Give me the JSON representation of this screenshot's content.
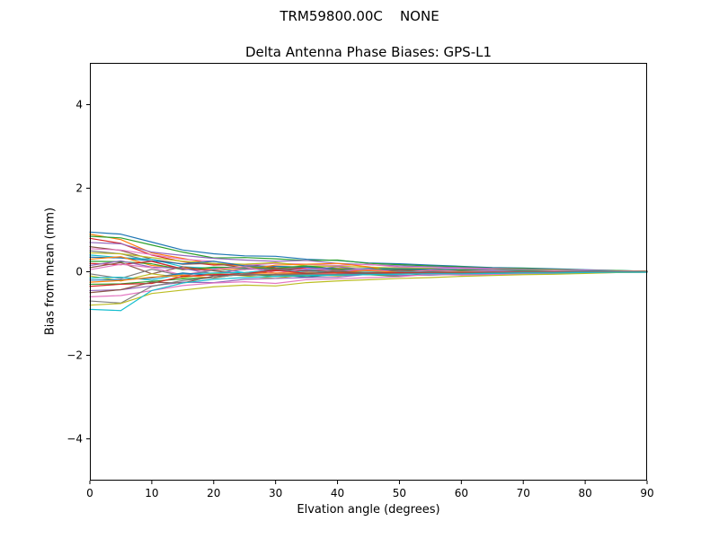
{
  "figure": {
    "title": "TRM59800.00C    NONE",
    "axes_title": "Delta Antenna Phase Biases: GPS-L1",
    "xlabel": "Elvation angle (degrees)",
    "ylabel": "Bias from mean (mm)",
    "background_color": "#ffffff",
    "axes_color": "#000000"
  },
  "chart_data": {
    "type": "line",
    "suptitle": "TRM59800.00C    NONE",
    "title": "Delta Antenna Phase Biases: GPS-L1",
    "xlabel": "Elvation angle (degrees)",
    "ylabel": "Bias from mean (mm)",
    "xlim": [
      0,
      90
    ],
    "ylim": [
      -5,
      5
    ],
    "xticks": [
      0,
      10,
      20,
      30,
      40,
      50,
      60,
      70,
      80,
      90
    ],
    "xtick_labels": [
      "0",
      "10",
      "20",
      "30",
      "40",
      "50",
      "60",
      "70",
      "80",
      "90"
    ],
    "yticks": [
      -4,
      -2,
      0,
      2,
      4
    ],
    "ytick_labels": [
      "−4",
      "−2",
      "0",
      "2",
      "4"
    ],
    "grid": false,
    "legend": null,
    "x": [
      0,
      5,
      10,
      15,
      20,
      25,
      30,
      35,
      40,
      45,
      50,
      55,
      60,
      65,
      70,
      75,
      80,
      85,
      90
    ],
    "series": [
      {
        "color": "#1f77b4",
        "values": [
          0.95,
          0.9,
          0.71,
          0.52,
          0.43,
          0.38,
          0.37,
          0.3,
          0.27,
          0.21,
          0.19,
          0.16,
          0.13,
          0.1,
          0.09,
          0.07,
          0.05,
          0.03,
          0.01
        ]
      },
      {
        "color": "#ff7f0e",
        "values": [
          0.9,
          0.77,
          0.45,
          0.32,
          0.18,
          0.14,
          0.07,
          0.09,
          0.08,
          0.07,
          0.06,
          0.05,
          0.05,
          0.04,
          0.03,
          0.03,
          0.02,
          0.01,
          0.01
        ]
      },
      {
        "color": "#2ca02c",
        "values": [
          0.85,
          0.81,
          0.64,
          0.47,
          0.33,
          0.34,
          0.31,
          0.27,
          0.28,
          0.2,
          0.17,
          0.14,
          0.12,
          0.09,
          0.08,
          0.06,
          0.04,
          0.03,
          0.01
        ]
      },
      {
        "color": "#d62728",
        "values": [
          0.8,
          0.68,
          0.4,
          0.24,
          0.16,
          0.18,
          0.1,
          0.08,
          0.02,
          0.06,
          0.06,
          0.05,
          0.04,
          0.03,
          0.02,
          0.02,
          0.02,
          0.01,
          0.01
        ]
      },
      {
        "color": "#9467bd",
        "values": [
          0.7,
          0.67,
          0.47,
          0.39,
          0.32,
          0.28,
          0.25,
          0.27,
          0.2,
          0.17,
          0.14,
          0.12,
          0.1,
          0.08,
          0.06,
          0.05,
          0.04,
          0.02,
          0.01
        ]
      },
      {
        "color": "#8c564b",
        "values": [
          0.6,
          0.51,
          0.3,
          0.18,
          0.2,
          0.09,
          0.07,
          0.06,
          0.05,
          0.05,
          0.0,
          0.04,
          0.03,
          0.02,
          0.02,
          0.02,
          0.01,
          0.01,
          0.01
        ]
      },
      {
        "color": "#e377c2",
        "values": [
          0.55,
          0.52,
          0.41,
          0.3,
          0.25,
          0.15,
          0.2,
          0.18,
          0.15,
          0.18,
          0.11,
          0.09,
          0.08,
          0.06,
          0.05,
          0.04,
          0.03,
          0.02,
          0.01
        ]
      },
      {
        "color": "#7f7f7f",
        "values": [
          0.5,
          0.43,
          0.25,
          0.07,
          0.1,
          0.08,
          0.06,
          0.12,
          0.05,
          0.04,
          0.04,
          0.03,
          0.03,
          0.02,
          0.02,
          0.02,
          0.01,
          0.01,
          0.0
        ]
      },
      {
        "color": "#bcbd22",
        "values": [
          0.45,
          0.43,
          0.34,
          0.25,
          0.2,
          0.18,
          0.22,
          0.14,
          0.13,
          0.11,
          0.09,
          0.08,
          0.02,
          0.05,
          0.04,
          0.03,
          0.02,
          0.01,
          0.01
        ]
      },
      {
        "color": "#17becf",
        "values": [
          0.4,
          0.34,
          0.3,
          0.12,
          0.08,
          -0.02,
          0.05,
          0.04,
          0.04,
          0.03,
          0.03,
          0.02,
          0.02,
          0.02,
          0.01,
          0.01,
          0.01,
          0.0,
          0.0
        ]
      },
      {
        "color": "#1f77b4",
        "values": [
          0.35,
          0.33,
          0.26,
          0.19,
          0.25,
          0.14,
          0.13,
          0.11,
          0.04,
          0.08,
          0.07,
          0.06,
          0.05,
          0.04,
          0.03,
          0.02,
          0.02,
          0.01,
          0.0
        ]
      },
      {
        "color": "#ff7f0e",
        "values": [
          0.3,
          0.36,
          0.15,
          0.09,
          0.06,
          0.05,
          0.16,
          0.18,
          0.2,
          0.12,
          -0.03,
          0.02,
          0.02,
          0.01,
          0.01,
          0.01,
          0.01,
          0.0,
          0.0
        ]
      },
      {
        "color": "#2ca02c",
        "values": [
          0.25,
          0.24,
          0.19,
          0.05,
          0.11,
          0.1,
          0.09,
          0.14,
          0.07,
          0.06,
          0.05,
          0.04,
          0.04,
          0.03,
          0.02,
          0.02,
          0.01,
          0.01,
          0.0
        ]
      },
      {
        "color": "#d62728",
        "values": [
          0.2,
          0.17,
          0.25,
          0.06,
          0.04,
          -0.07,
          0.02,
          0.02,
          0.02,
          0.02,
          0.01,
          0.01,
          0.01,
          0.01,
          0.01,
          0.01,
          0.0,
          0.0,
          0.0
        ]
      },
      {
        "color": "#9467bd",
        "values": [
          0.15,
          0.26,
          0.11,
          0.08,
          -0.05,
          0.06,
          0.05,
          0.05,
          0.12,
          0.04,
          0.03,
          0.03,
          0.02,
          0.02,
          0.01,
          0.01,
          0.01,
          0.0,
          0.0
        ]
      },
      {
        "color": "#8c564b",
        "values": [
          0.1,
          0.22,
          -0.05,
          0.12,
          0.02,
          -0.06,
          0.08,
          0.01,
          0.05,
          -0.03,
          0.04,
          0.01,
          0.02,
          0.0,
          0.01,
          0.0,
          0.0,
          0.0,
          0.0
        ]
      },
      {
        "color": "#e377c2",
        "values": [
          0.05,
          0.18,
          0.1,
          -0.08,
          0.06,
          0.12,
          -0.04,
          0.08,
          0.02,
          0.06,
          -0.02,
          0.04,
          0.01,
          0.03,
          0.0,
          0.02,
          0.0,
          0.01,
          0.0
        ]
      },
      {
        "color": "#7f7f7f",
        "values": [
          -0.05,
          -0.16,
          0.06,
          -0.1,
          0.04,
          -0.08,
          0.05,
          -0.03,
          0.04,
          -0.04,
          0.02,
          -0.02,
          0.01,
          -0.01,
          0.01,
          0.0,
          0.0,
          0.0,
          0.0
        ]
      },
      {
        "color": "#bcbd22",
        "values": [
          -0.1,
          -0.22,
          -0.05,
          -0.14,
          -0.04,
          -0.1,
          -0.16,
          -0.06,
          -0.1,
          -0.03,
          -0.06,
          -0.02,
          -0.03,
          -0.01,
          -0.02,
          -0.01,
          -0.01,
          0.0,
          0.0
        ]
      },
      {
        "color": "#17becf",
        "values": [
          -0.15,
          -0.13,
          -0.2,
          -0.05,
          -0.03,
          -0.02,
          0.04,
          -0.02,
          -0.01,
          -0.01,
          -0.01,
          -0.01,
          -0.01,
          0.0,
          0.0,
          0.0,
          0.0,
          0.0,
          0.0
        ]
      },
      {
        "color": "#1f77b4",
        "values": [
          -0.2,
          -0.19,
          -0.15,
          -0.03,
          -0.09,
          -0.08,
          -0.07,
          -0.13,
          -0.06,
          -0.05,
          -0.04,
          -0.03,
          -0.03,
          -0.02,
          -0.02,
          -0.01,
          -0.01,
          0.0,
          0.0
        ]
      },
      {
        "color": "#ff7f0e",
        "values": [
          -0.25,
          -0.21,
          -0.13,
          -0.08,
          -0.15,
          -0.04,
          -0.03,
          -0.03,
          -0.02,
          0.03,
          -0.02,
          -0.02,
          -0.01,
          -0.01,
          -0.01,
          -0.01,
          -0.01,
          0.0,
          0.0
        ]
      },
      {
        "color": "#2ca02c",
        "values": [
          -0.3,
          -0.29,
          -0.23,
          -0.17,
          -0.14,
          -0.05,
          -0.11,
          -0.1,
          -0.08,
          -0.07,
          -0.11,
          -0.05,
          -0.04,
          -0.03,
          -0.03,
          -0.02,
          -0.02,
          -0.01,
          0.0
        ]
      },
      {
        "color": "#d62728",
        "values": [
          -0.35,
          -0.3,
          -0.28,
          -0.11,
          -0.07,
          -0.05,
          0.04,
          -0.04,
          -0.03,
          -0.03,
          -0.02,
          -0.02,
          -0.02,
          -0.01,
          -0.01,
          -0.01,
          -0.01,
          0.0,
          0.0
        ]
      },
      {
        "color": "#9467bd",
        "values": [
          -0.45,
          -0.43,
          -0.34,
          -0.25,
          -0.26,
          -0.18,
          -0.16,
          -0.14,
          -0.13,
          -0.06,
          -0.09,
          -0.08,
          -0.06,
          -0.05,
          -0.04,
          -0.03,
          -0.02,
          -0.01,
          -0.01
        ]
      },
      {
        "color": "#8c564b",
        "values": [
          -0.5,
          -0.43,
          -0.25,
          -0.27,
          -0.1,
          -0.08,
          -0.06,
          -0.05,
          0.01,
          -0.04,
          -0.04,
          -0.03,
          -0.03,
          -0.02,
          -0.02,
          -0.02,
          -0.01,
          -0.01,
          0.0
        ]
      },
      {
        "color": "#e377c2",
        "values": [
          -0.6,
          -0.57,
          -0.45,
          -0.33,
          -0.27,
          -0.24,
          -0.28,
          -0.19,
          -0.17,
          -0.14,
          -0.12,
          -0.06,
          -0.08,
          -0.07,
          -0.05,
          -0.04,
          -0.03,
          -0.02,
          -0.01
        ]
      },
      {
        "color": "#7f7f7f",
        "values": [
          -0.7,
          -0.75,
          -0.35,
          -0.21,
          -0.14,
          -0.05,
          -0.08,
          -0.07,
          -0.06,
          -0.06,
          -0.05,
          -0.04,
          -0.04,
          -0.03,
          -0.02,
          -0.02,
          -0.01,
          -0.01,
          -0.01
        ]
      },
      {
        "color": "#bcbd22",
        "values": [
          -0.8,
          -0.76,
          -0.52,
          -0.44,
          -0.36,
          -0.32,
          -0.34,
          -0.26,
          -0.22,
          -0.19,
          -0.16,
          -0.14,
          -0.11,
          -0.09,
          -0.07,
          -0.06,
          -0.04,
          -0.02,
          -0.01
        ]
      },
      {
        "color": "#17becf",
        "values": [
          -0.9,
          -0.93,
          -0.45,
          -0.27,
          -0.18,
          -0.14,
          -0.11,
          -0.09,
          -0.08,
          -0.07,
          -0.06,
          -0.05,
          -0.05,
          -0.04,
          -0.03,
          -0.03,
          -0.02,
          -0.01,
          -0.01
        ]
      }
    ]
  }
}
